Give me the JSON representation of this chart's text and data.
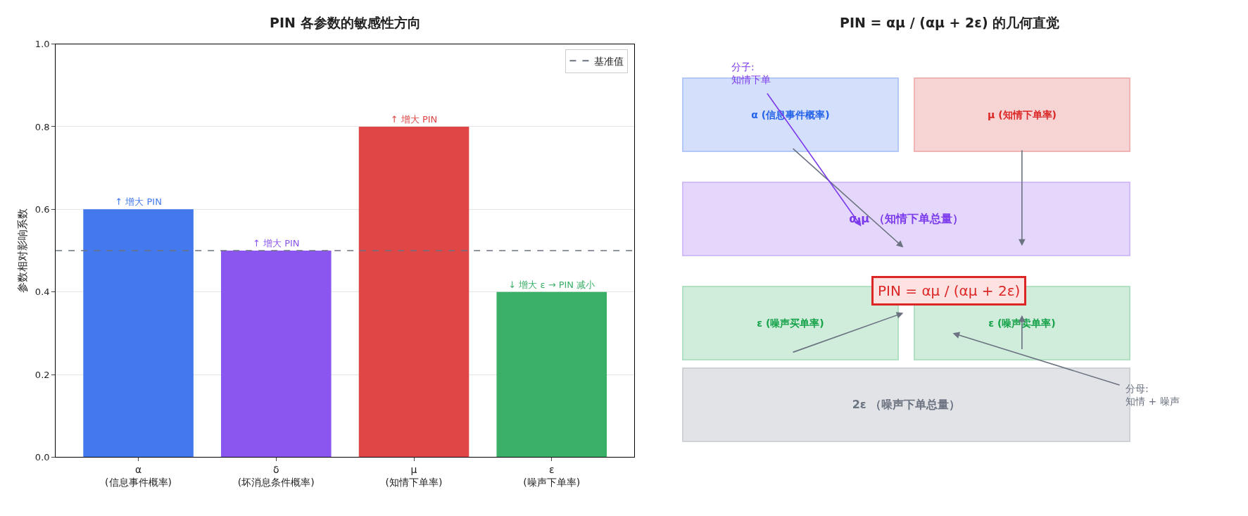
{
  "chart_data": [
    {
      "type": "bar",
      "title": "PIN 各参数的敏感性方向",
      "ylabel": "参数相对影响系数",
      "categories": [
        "α\n(信息事件概率)",
        "δ\n(坏消息条件概率)",
        "μ\n(知情下单率)",
        "ε\n(噪声下单率)"
      ],
      "values": [
        0.6,
        0.5,
        0.8,
        0.4
      ],
      "colors": [
        "#4479ee",
        "#8b55ef",
        "#e04646",
        "#3aaf67"
      ],
      "value_labels": [
        "↑ 增大 PIN",
        "↑ 增大 PIN",
        "↑ 增大 PIN",
        "↓ 增大 ε → PIN 减小"
      ],
      "ylim": [
        0,
        1
      ],
      "yticks": [
        {
          "value": 0,
          "label": "0.0"
        },
        {
          "value": 0.2,
          "label": "0.2"
        },
        {
          "value": 0.4,
          "label": "0.4"
        },
        {
          "value": 0.6,
          "label": "0.6"
        },
        {
          "value": 0.8,
          "label": "0.8"
        },
        {
          "value": 1,
          "label": "1.0"
        }
      ],
      "ref_lines": [
        {
          "axis": "y",
          "value": 0.5,
          "label": "基准值",
          "color": "#6b7280",
          "line_style": "dashed"
        }
      ],
      "grid": "y",
      "legend": "top right"
    },
    {
      "type": "other",
      "title": "PIN = αμ / (αμ + 2ε) 的几何直觉",
      "annotations": [
        "α (信息事件概率)",
        "μ (知情下单率)",
        "α·μ （知情下单总量）",
        "ε (噪声买单率)",
        "ε (噪声卖单率)",
        "2ε （噪声下单总量）",
        "PIN = αμ / (αμ + 2ε)",
        "分子:\n知情下单",
        "分母:\n知情 + 噪声"
      ]
    }
  ]
}
